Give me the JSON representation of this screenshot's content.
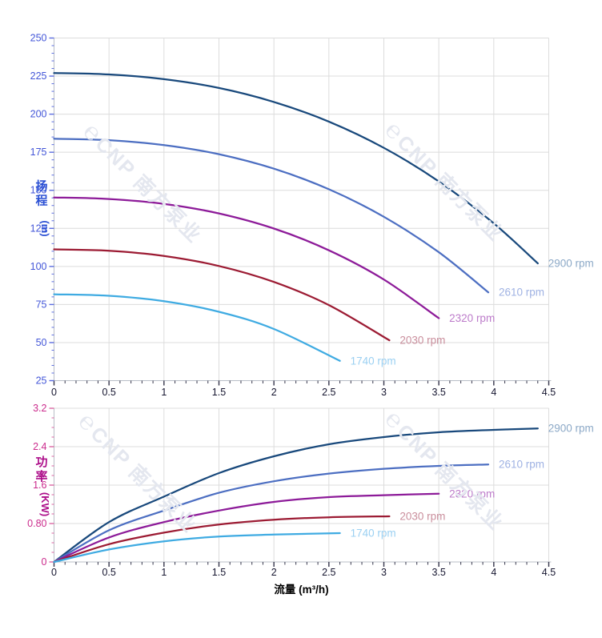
{
  "watermark": {
    "logo_glyph": "℮",
    "text": "CNP 南方泵业",
    "color": "#e4e7ef"
  },
  "chart_data": [
    {
      "id": "head-chart",
      "type": "line",
      "title": "",
      "xlabel": "",
      "ylabel": "扬程 (m)",
      "ylabel_chars": [
        "扬",
        "程"
      ],
      "ylabel_unit": "(m)",
      "ylabel_color": "#2b50d4",
      "tick_label_color": "#4356d8",
      "tick_color": "#5b6ce0",
      "x_tick_label_color": "#15152f",
      "x_tick_color": "#34344a",
      "grid": true,
      "legend_position": "right-end-labels",
      "xlim": [
        0,
        4.5
      ],
      "ylim": [
        25,
        250
      ],
      "x_major": 0.5,
      "x_minor": 0.1,
      "y_major": 25,
      "y_minor": 5,
      "xticks": [
        [
          0,
          "0"
        ],
        [
          0.5,
          "0.5"
        ],
        [
          1,
          "1"
        ],
        [
          1.5,
          "1.5"
        ],
        [
          2,
          "2"
        ],
        [
          2.5,
          "2.5"
        ],
        [
          3,
          "3"
        ],
        [
          3.5,
          "3.5"
        ],
        [
          4,
          "4"
        ],
        [
          4.5,
          "4.5"
        ]
      ],
      "yticks": [
        [
          25,
          "25"
        ],
        [
          50,
          "50"
        ],
        [
          75,
          "75"
        ],
        [
          100,
          "100"
        ],
        [
          125,
          "125"
        ],
        [
          150,
          "150"
        ],
        [
          175,
          "175"
        ],
        [
          200,
          "200"
        ],
        [
          225,
          "225"
        ],
        [
          250,
          "250"
        ]
      ],
      "series": [
        {
          "name": "2900 rpm",
          "color": "#19497c",
          "label_color": "#8ca9c7",
          "points": [
            [
              0,
              227
            ],
            [
              0.5,
              226.1
            ],
            [
              1,
              223
            ],
            [
              1.5,
              217.2
            ],
            [
              2,
              208
            ],
            [
              2.5,
              195.1
            ],
            [
              3,
              177.9
            ],
            [
              3.5,
              155.8
            ],
            [
              4,
              128.3
            ],
            [
              4.4,
              102
            ]
          ]
        },
        {
          "name": "2610 rpm",
          "color": "#4d6fc2",
          "label_color": "#9fb2e3",
          "points": [
            [
              0,
              183.9
            ],
            [
              0.5,
              182.9
            ],
            [
              1,
              179.7
            ],
            [
              1.5,
              173.7
            ],
            [
              2,
              164.2
            ],
            [
              2.5,
              150.7
            ],
            [
              3,
              132.6
            ],
            [
              3.5,
              109.3
            ],
            [
              3.95,
              83
            ]
          ]
        },
        {
          "name": "2320 rpm",
          "color": "#8d1b99",
          "label_color": "#bd7cca",
          "points": [
            [
              0,
              145.3
            ],
            [
              0.5,
              144.3
            ],
            [
              1,
              141.1
            ],
            [
              1.5,
              134.8
            ],
            [
              2,
              124.9
            ],
            [
              2.5,
              110.6
            ],
            [
              3,
              91.4
            ],
            [
              3.5,
              66
            ]
          ]
        },
        {
          "name": "2030 rpm",
          "color": "#9c1b33",
          "label_color": "#ca8f9d",
          "points": [
            [
              0,
              111.2
            ],
            [
              0.5,
              110.3
            ],
            [
              1,
              106.9
            ],
            [
              1.5,
              100.3
            ],
            [
              2,
              89.8
            ],
            [
              2.5,
              74.6
            ],
            [
              3.05,
              51.5
            ]
          ]
        },
        {
          "name": "1740 rpm",
          "color": "#3fabe2",
          "label_color": "#9bd0f2",
          "points": [
            [
              0,
              81.7
            ],
            [
              0.5,
              80.7
            ],
            [
              1,
              77.2
            ],
            [
              1.5,
              70.2
            ],
            [
              2,
              58.9
            ],
            [
              2.6,
              38
            ]
          ]
        }
      ]
    },
    {
      "id": "power-chart",
      "type": "line",
      "title": "",
      "xlabel": "流量 (m³/h)",
      "xlabel_color": "#000000",
      "ylabel": "功率 (KW)",
      "ylabel_chars": [
        "功",
        "率"
      ],
      "ylabel_unit": "(KW)",
      "ylabel_color": "#ad0f8a",
      "tick_label_color": "#cb2b8c",
      "tick_color": "#dc66a4",
      "x_tick_label_color": "#15152f",
      "x_tick_color": "#34344a",
      "grid": true,
      "legend_position": "right-end-labels",
      "xlim": [
        0,
        4.5
      ],
      "ylim": [
        0,
        3.2
      ],
      "x_major": 0.5,
      "x_minor": 0.1,
      "y_major": 0.8,
      "y_minor": 0.2,
      "xticks": [
        [
          0,
          "0"
        ],
        [
          0.5,
          "0.5"
        ],
        [
          1,
          "1"
        ],
        [
          1.5,
          "1.5"
        ],
        [
          2,
          "2"
        ],
        [
          2.5,
          "2.5"
        ],
        [
          3,
          "3"
        ],
        [
          3.5,
          "3.5"
        ],
        [
          4,
          "4"
        ],
        [
          4.5,
          "4.5"
        ]
      ],
      "yticks": [
        [
          0,
          "0"
        ],
        [
          0.8,
          "0.80"
        ],
        [
          1.6,
          "1.6"
        ],
        [
          2.4,
          "2.4"
        ],
        [
          3.2,
          "3.2"
        ]
      ],
      "series": [
        {
          "name": "2900 rpm",
          "color": "#19497c",
          "label_color": "#8ca9c7",
          "points": [
            [
              0,
              0
            ],
            [
              0.5,
              0.83
            ],
            [
              1,
              1.36
            ],
            [
              1.5,
              1.85
            ],
            [
              2,
              2.2
            ],
            [
              2.5,
              2.45
            ],
            [
              3,
              2.6
            ],
            [
              3.5,
              2.7
            ],
            [
              4,
              2.75
            ],
            [
              4.4,
              2.78
            ]
          ]
        },
        {
          "name": "2610 rpm",
          "color": "#4d6fc2",
          "label_color": "#9fb2e3",
          "points": [
            [
              0,
              0
            ],
            [
              0.5,
              0.66
            ],
            [
              1,
              1.07
            ],
            [
              1.5,
              1.44
            ],
            [
              2,
              1.68
            ],
            [
              2.5,
              1.84
            ],
            [
              3,
              1.94
            ],
            [
              3.5,
              2.0
            ],
            [
              3.95,
              2.03
            ]
          ]
        },
        {
          "name": "2320 rpm",
          "color": "#8d1b99",
          "label_color": "#bd7cca",
          "points": [
            [
              0,
              0
            ],
            [
              0.5,
              0.51
            ],
            [
              1,
              0.83
            ],
            [
              1.5,
              1.07
            ],
            [
              2,
              1.25
            ],
            [
              2.5,
              1.35
            ],
            [
              3,
              1.39
            ],
            [
              3.5,
              1.42
            ]
          ]
        },
        {
          "name": "2030 rpm",
          "color": "#9c1b33",
          "label_color": "#ca8f9d",
          "points": [
            [
              0,
              0
            ],
            [
              0.5,
              0.37
            ],
            [
              1,
              0.61
            ],
            [
              1.5,
              0.78
            ],
            [
              2,
              0.88
            ],
            [
              2.5,
              0.93
            ],
            [
              3.05,
              0.95
            ]
          ]
        },
        {
          "name": "1740 rpm",
          "color": "#3fabe2",
          "label_color": "#9bd0f2",
          "points": [
            [
              0,
              0
            ],
            [
              0.5,
              0.26
            ],
            [
              1,
              0.43
            ],
            [
              1.5,
              0.53
            ],
            [
              2,
              0.57
            ],
            [
              2.6,
              0.6
            ]
          ]
        }
      ]
    }
  ]
}
